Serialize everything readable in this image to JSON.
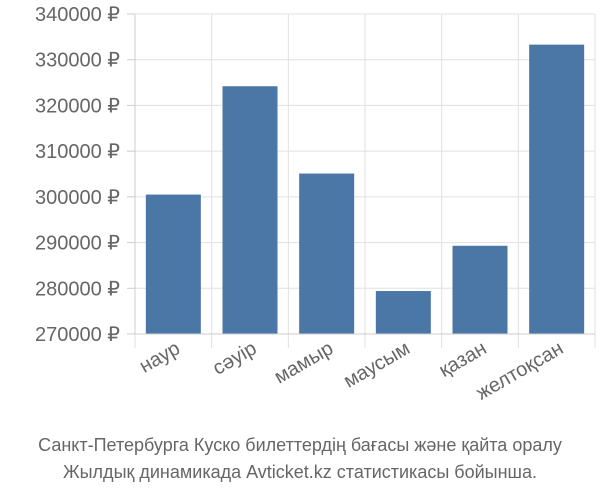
{
  "chart_data": {
    "type": "bar",
    "categories": [
      "наур",
      "сәуір",
      "мамыр",
      "маусым",
      "қазан",
      "желтоқсан"
    ],
    "values": [
      300500,
      324200,
      305100,
      279400,
      289300,
      333300
    ],
    "ylim": [
      270000,
      340000
    ],
    "yticks": [
      270000,
      280000,
      290000,
      300000,
      310000,
      320000,
      330000,
      340000
    ],
    "ytick_labels": [
      "270000 ₽",
      "280000 ₽",
      "290000 ₽",
      "300000 ₽",
      "310000 ₽",
      "320000 ₽",
      "330000 ₽",
      "340000 ₽"
    ],
    "grid": true,
    "bar_color": "#4b77a7"
  },
  "caption": {
    "line1": "Санкт-Петербурга Куско билеттердің бағасы және қайта оралу",
    "line2": "Жылдық динамикада Avticket.kz статистикасы бойынша."
  }
}
